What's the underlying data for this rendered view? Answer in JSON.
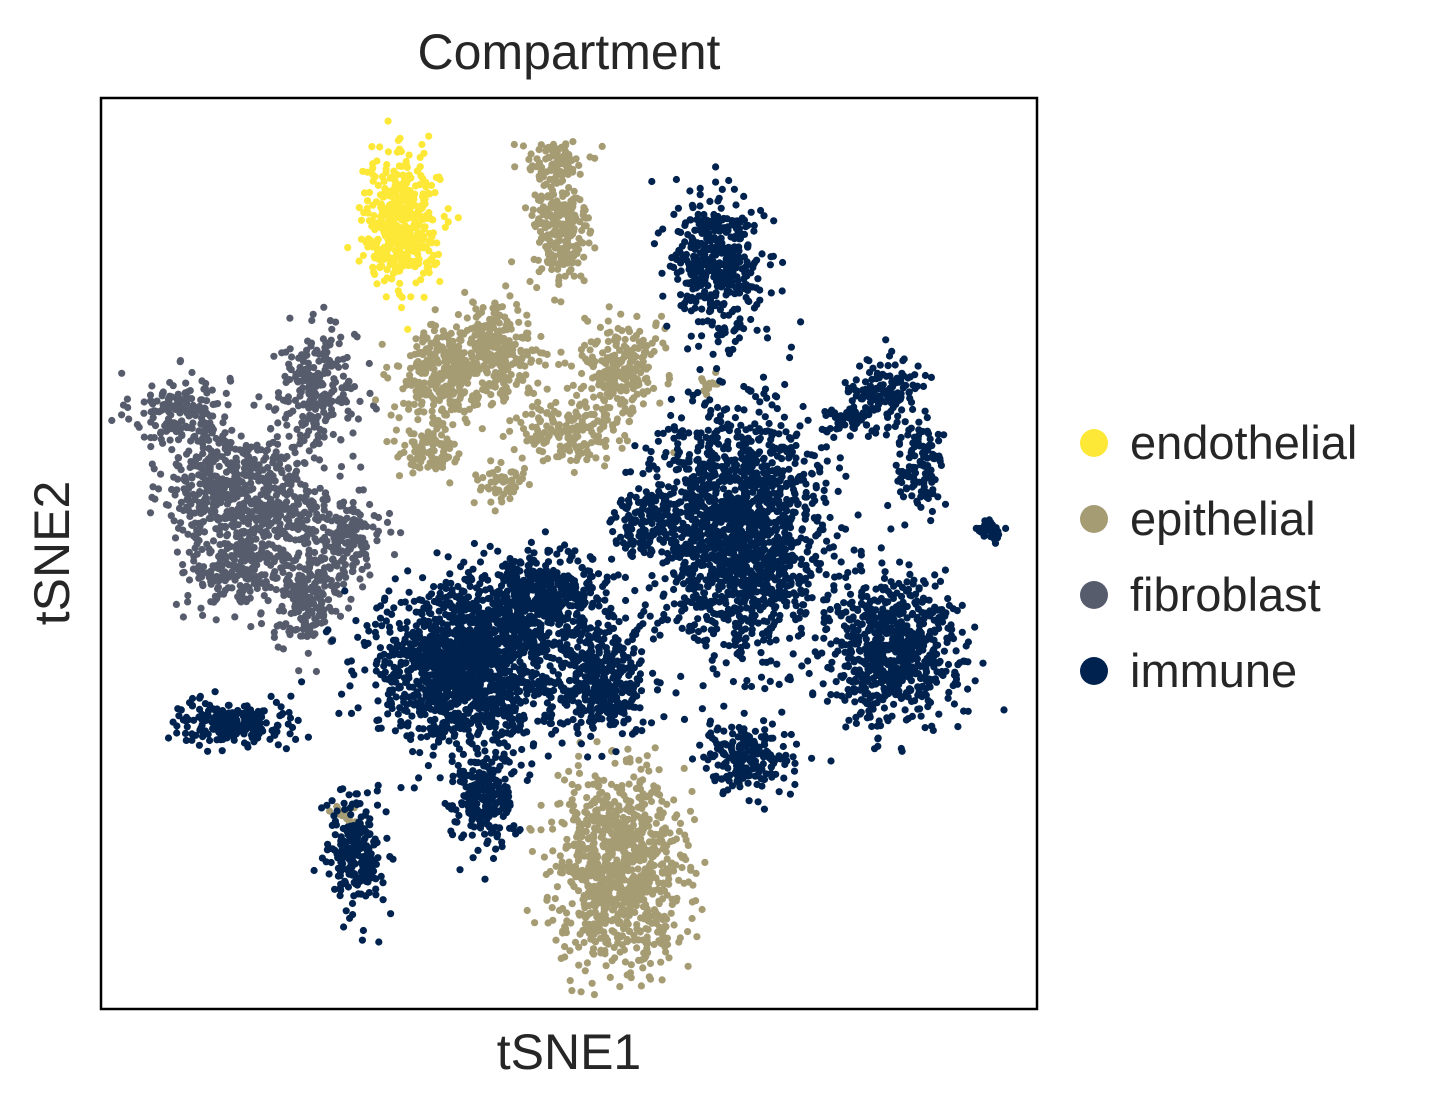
{
  "chart_data": {
    "type": "scatter",
    "title": "Compartment",
    "xlabel": "tSNE1",
    "ylabel": "tSNE2",
    "xticks": [],
    "yticks": [],
    "grid": false,
    "legend": {
      "placement": "right-outside"
    },
    "xlim": [
      0,
      100
    ],
    "ylim": [
      0,
      100
    ],
    "series": [
      {
        "name": "endothelial",
        "color": "#fde837",
        "clusters": [
          {
            "cx": 32.0,
            "cy": 86.5,
            "sx": 2.0,
            "sy": 3.5,
            "n": 420
          }
        ]
      },
      {
        "name": "epithelial",
        "color": "#a69c74",
        "clusters": [
          {
            "cx": 48.5,
            "cy": 93.0,
            "sx": 1.6,
            "sy": 1.2,
            "n": 80
          },
          {
            "cx": 49.0,
            "cy": 85.5,
            "sx": 1.6,
            "sy": 3.5,
            "n": 240
          },
          {
            "cx": 36.0,
            "cy": 69.5,
            "sx": 2.2,
            "sy": 2.6,
            "n": 260
          },
          {
            "cx": 42.0,
            "cy": 72.0,
            "sx": 2.4,
            "sy": 2.6,
            "n": 280
          },
          {
            "cx": 55.5,
            "cy": 70.5,
            "sx": 2.0,
            "sy": 2.7,
            "n": 240
          },
          {
            "cx": 50.0,
            "cy": 63.5,
            "sx": 3.0,
            "sy": 1.8,
            "n": 170
          },
          {
            "cx": 35.0,
            "cy": 61.5,
            "sx": 1.6,
            "sy": 1.6,
            "n": 90
          },
          {
            "cx": 42.5,
            "cy": 57.5,
            "sx": 1.3,
            "sy": 1.3,
            "n": 50
          },
          {
            "cx": 55.5,
            "cy": 15.5,
            "sx": 3.4,
            "sy": 5.0,
            "n": 980
          },
          {
            "cx": 65.0,
            "cy": 68.5,
            "sx": 0.6,
            "sy": 0.5,
            "n": 12
          },
          {
            "cx": 26.0,
            "cy": 21.5,
            "sx": 0.7,
            "sy": 0.7,
            "n": 14
          }
        ]
      },
      {
        "name": "fibroblast",
        "color": "#575c6d",
        "clusters": [
          {
            "cx": 8.5,
            "cy": 65.5,
            "sx": 2.6,
            "sy": 2.2,
            "n": 170
          },
          {
            "cx": 12.0,
            "cy": 57.0,
            "sx": 2.6,
            "sy": 3.0,
            "n": 260
          },
          {
            "cx": 18.5,
            "cy": 56.0,
            "sx": 3.2,
            "sy": 3.4,
            "n": 360
          },
          {
            "cx": 23.0,
            "cy": 68.0,
            "sx": 2.2,
            "sy": 3.2,
            "n": 240
          },
          {
            "cx": 14.5,
            "cy": 48.5,
            "sx": 2.6,
            "sy": 2.4,
            "n": 220
          },
          {
            "cx": 22.0,
            "cy": 45.0,
            "sx": 1.8,
            "sy": 2.6,
            "n": 200
          },
          {
            "cx": 26.5,
            "cy": 51.5,
            "sx": 1.8,
            "sy": 2.0,
            "n": 150
          }
        ]
      },
      {
        "name": "immune",
        "color": "#00224e",
        "clusters": [
          {
            "cx": 66.0,
            "cy": 81.5,
            "sx": 2.4,
            "sy": 3.8,
            "n": 420
          },
          {
            "cx": 83.5,
            "cy": 67.5,
            "sx": 2.0,
            "sy": 2.0,
            "n": 160
          },
          {
            "cx": 87.5,
            "cy": 59.5,
            "sx": 1.3,
            "sy": 2.5,
            "n": 110
          },
          {
            "cx": 79.0,
            "cy": 64.5,
            "sx": 1.0,
            "sy": 0.9,
            "n": 40
          },
          {
            "cx": 95.0,
            "cy": 52.5,
            "sx": 0.7,
            "sy": 0.6,
            "n": 40
          },
          {
            "cx": 68.0,
            "cy": 52.5,
            "sx": 4.5,
            "sy": 6.5,
            "n": 1600
          },
          {
            "cx": 58.5,
            "cy": 53.5,
            "sx": 2.0,
            "sy": 1.8,
            "n": 150
          },
          {
            "cx": 84.5,
            "cy": 39.5,
            "sx": 3.6,
            "sy": 3.8,
            "n": 700
          },
          {
            "cx": 39.0,
            "cy": 37.5,
            "sx": 5.0,
            "sy": 4.5,
            "n": 1500
          },
          {
            "cx": 47.0,
            "cy": 45.0,
            "sx": 3.5,
            "sy": 2.6,
            "n": 520
          },
          {
            "cx": 53.5,
            "cy": 35.5,
            "sx": 2.2,
            "sy": 2.8,
            "n": 360
          },
          {
            "cx": 14.5,
            "cy": 31.5,
            "sx": 3.2,
            "sy": 1.2,
            "n": 240
          },
          {
            "cx": 41.0,
            "cy": 22.5,
            "sx": 1.7,
            "sy": 2.6,
            "n": 220
          },
          {
            "cx": 27.0,
            "cy": 17.0,
            "sx": 1.5,
            "sy": 3.0,
            "n": 230
          },
          {
            "cx": 69.0,
            "cy": 27.5,
            "sx": 2.6,
            "sy": 2.0,
            "n": 200
          }
        ]
      }
    ]
  }
}
